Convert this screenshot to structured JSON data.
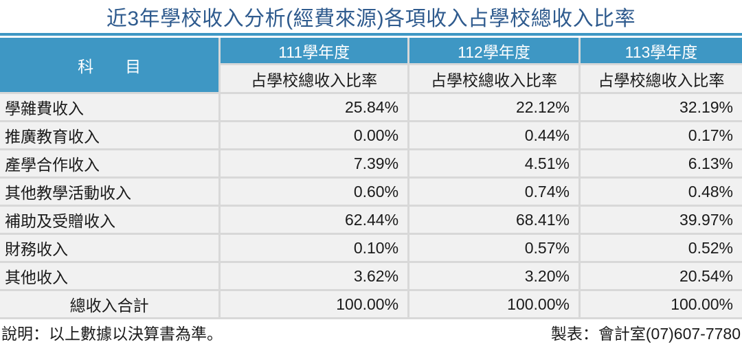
{
  "title": "近3年學校收入分析(經費來源)各項收入占學校總收入比率",
  "colors": {
    "header_blue": "#3e97c4",
    "title_blue": "#2f5b8e",
    "cell_gray": "#f1f1f1",
    "divider_gray": "#d8d8d8"
  },
  "table": {
    "subject_header": "科　　目",
    "year_headers": [
      "111學年度",
      "112學年度",
      "113學年度"
    ],
    "sub_header": "占學校總收入比率",
    "rows": [
      {
        "label": "學雜費收入",
        "values": [
          "25.84%",
          "22.12%",
          "32.19%"
        ]
      },
      {
        "label": "推廣教育收入",
        "values": [
          "0.00%",
          "0.44%",
          "0.17%"
        ]
      },
      {
        "label": "產學合作收入",
        "values": [
          "7.39%",
          "4.51%",
          "6.13%"
        ]
      },
      {
        "label": "其他教學活動收入",
        "values": [
          "0.60%",
          "0.74%",
          "0.48%"
        ]
      },
      {
        "label": "補助及受贈收入",
        "values": [
          "62.44%",
          "68.41%",
          "39.97%"
        ]
      },
      {
        "label": "財務收入",
        "values": [
          "0.10%",
          "0.57%",
          "0.52%"
        ]
      },
      {
        "label": "其他收入",
        "values": [
          "3.62%",
          "3.20%",
          "20.54%"
        ]
      },
      {
        "label": "總收入合計",
        "values": [
          "100.00%",
          "100.00%",
          "100.00%"
        ]
      }
    ]
  },
  "footer": {
    "note": "說明：以上數據以決算書為準。",
    "credit": "製表：會計室(07)607-7780"
  }
}
